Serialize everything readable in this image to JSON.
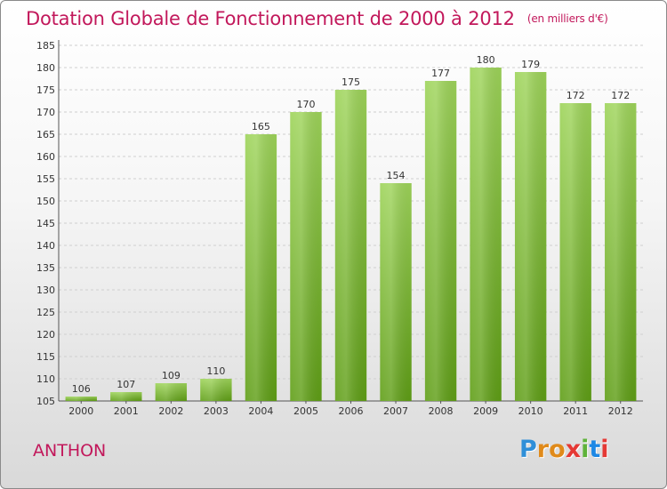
{
  "header": {
    "title": "Dotation Globale de Fonctionnement de 2000 à 2012",
    "unit": "(en milliers d'€)"
  },
  "footer": {
    "place": "ANTHON",
    "logo_letters": [
      "P",
      "r",
      "o",
      "x",
      "i",
      "t",
      "i"
    ],
    "logo_colors": [
      "#2f8fd8",
      "#e08a1a",
      "#e08a1a",
      "#e53935",
      "#5fb33a",
      "#1e88e5",
      "#e53935"
    ]
  },
  "chart_data": {
    "type": "bar",
    "title": "Dotation Globale de Fonctionnement de 2000 à 2012",
    "subtitle": "(en milliers d'€)",
    "categories": [
      "2000",
      "2001",
      "2002",
      "2003",
      "2004",
      "2005",
      "2006",
      "2007",
      "2008",
      "2009",
      "2010",
      "2011",
      "2012"
    ],
    "values": [
      106,
      107,
      109,
      110,
      165,
      170,
      175,
      154,
      177,
      180,
      179,
      172,
      172
    ],
    "ylim": [
      105,
      185
    ],
    "yticks": [
      105,
      110,
      115,
      120,
      125,
      130,
      135,
      140,
      145,
      150,
      155,
      160,
      165,
      170,
      175,
      180,
      185
    ],
    "grid": true,
    "bar_color": "#7cc22e"
  }
}
